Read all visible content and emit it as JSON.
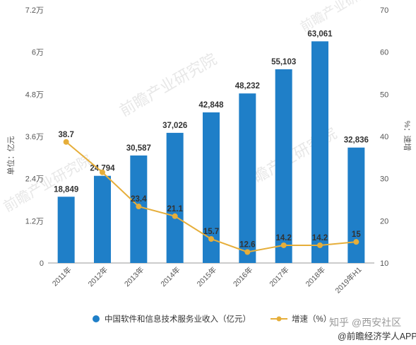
{
  "chart_data": {
    "type": "bar",
    "categories": [
      "2011年",
      "2012年",
      "2013年",
      "2014年",
      "2015年",
      "2016年",
      "2017年",
      "2018年",
      "2019年H1"
    ],
    "bar_values": [
      18849,
      24794,
      30587,
      37026,
      42848,
      48232,
      55103,
      63061,
      32836
    ],
    "bar_labels": [
      "18,849",
      "24,794",
      "30,587",
      "37,026",
      "42,848",
      "48,232",
      "55,103",
      "63,061",
      "32,836"
    ],
    "line_values": [
      38.7,
      31.5,
      23.4,
      21.1,
      15.7,
      12.6,
      14.2,
      14.2,
      15
    ],
    "line_labels": [
      "38.7",
      "",
      "23.4",
      "21.1",
      "15.7",
      "12.6",
      "14.2",
      "14.2",
      "15"
    ],
    "series": [
      {
        "name": "中国软件和信息技术服务业收入（亿元）",
        "kind": "bar",
        "color": "#1f7fc8"
      },
      {
        "name": "增速（%）",
        "kind": "line",
        "color": "#e6ae3a"
      }
    ],
    "ylabel_left": "单位：亿元",
    "ylabel_right": "%：速增",
    "ylim_left": [
      0,
      72000
    ],
    "yticks_left": [
      "0",
      "1.2万",
      "2.4万",
      "3.6万",
      "4.8万",
      "6万",
      "7.2万"
    ],
    "ylim_right": [
      10,
      70
    ],
    "yticks_right": [
      "10",
      "20",
      "30",
      "40",
      "50",
      "60",
      "70"
    ],
    "legend_position": "bottom",
    "grid": false
  },
  "watermark": {
    "main": "前瞻产业研究院",
    "footer_1": "知乎 @西安社区",
    "footer_2": "@前瞻经济学人APP"
  }
}
